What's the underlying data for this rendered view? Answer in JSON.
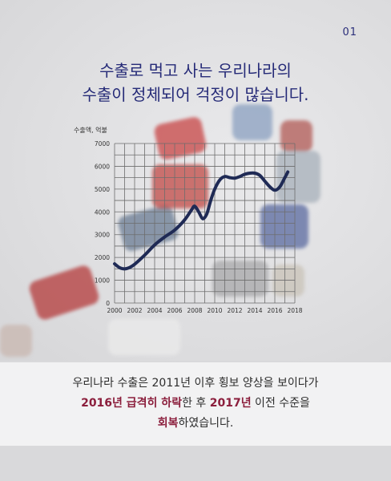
{
  "page_number": "01",
  "title": {
    "line1": "수출로 먹고 사는 우리나라의",
    "line2": "수출이 정체되어 걱정이 많습니다."
  },
  "chart_data": {
    "type": "line",
    "ylabel": "수출액, 억불",
    "xlim": [
      2000,
      2018
    ],
    "ylim": [
      0,
      7000
    ],
    "x_ticks": [
      2000,
      2002,
      2004,
      2006,
      2008,
      2010,
      2012,
      2014,
      2016,
      2018
    ],
    "y_ticks": [
      0,
      1000,
      2000,
      3000,
      4000,
      5000,
      6000,
      7000
    ],
    "grid": true,
    "series": [
      {
        "color": "#1f2a55",
        "x": [
          2000,
          2000.5,
          2001,
          2001.5,
          2002,
          2003,
          2004,
          2005,
          2006,
          2007,
          2007.7,
          2008,
          2008.4,
          2008.8,
          2009.2,
          2009.6,
          2010,
          2010.5,
          2011,
          2011.5,
          2012,
          2012.5,
          2013,
          2013.5,
          2014,
          2014.5,
          2015,
          2015.5,
          2016,
          2016.5,
          2017,
          2017.3
        ],
        "y": [
          1720,
          1550,
          1500,
          1560,
          1700,
          2100,
          2550,
          2900,
          3200,
          3650,
          4100,
          4250,
          4000,
          3700,
          3900,
          4500,
          5000,
          5400,
          5550,
          5500,
          5480,
          5550,
          5650,
          5700,
          5700,
          5600,
          5350,
          5100,
          4950,
          5100,
          5500,
          5750
        ]
      }
    ]
  },
  "summary": {
    "line1": "우리나라 수출은 2011년 이후 횡보 양상을 보이다가",
    "line2_hl1": "2016년 급격히 하락",
    "line2_mid": "한 후 ",
    "line2_hl2": "2017년",
    "line2_end": " 이전 수준을",
    "line3_hl": "회복",
    "line3_end": "하였습니다."
  },
  "colors": {
    "title": "#262b78",
    "highlight": "#8b1e3c",
    "line": "#1f2a55"
  }
}
